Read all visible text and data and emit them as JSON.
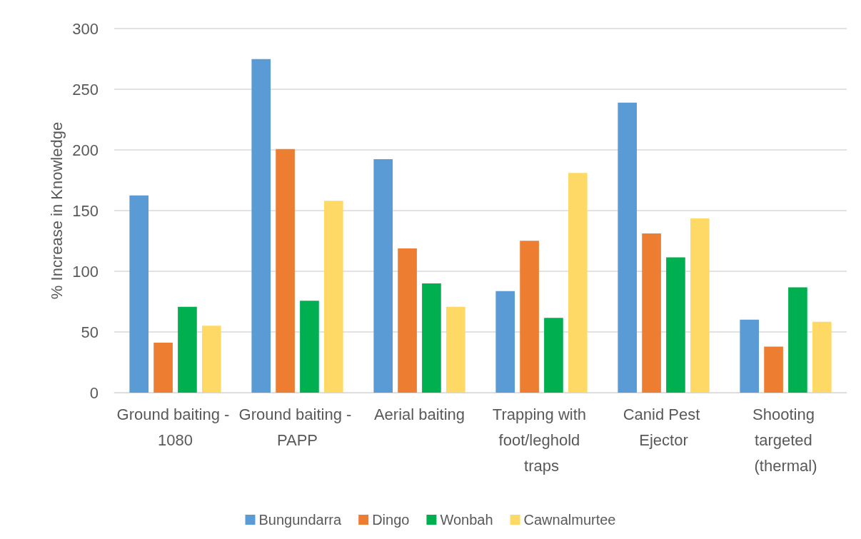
{
  "chart_data": {
    "type": "bar",
    "ylabel": "% Increase in Knowledge",
    "categories": [
      "Ground baiting - 1080",
      "Ground baiting - PAPP",
      "Aerial baiting",
      "Trapping with foot/leghold traps",
      "Canid Pest Ejector",
      "Shooting targeted (thermal)"
    ],
    "series": [
      {
        "name": "Bungundarra",
        "color": "#5b9bd5",
        "values": [
          162.5,
          274.8,
          192.3,
          83.7,
          239,
          60.1
        ]
      },
      {
        "name": "Dingo",
        "color": "#ed7d31",
        "values": [
          41.2,
          200.8,
          118.8,
          125.1,
          131.2,
          38
        ]
      },
      {
        "name": "Wonbah",
        "color": "#00b050",
        "values": [
          70.8,
          75.7,
          90,
          61.6,
          111.4,
          86.8
        ]
      },
      {
        "name": "Cawnalmurtee",
        "color": "#ffd966",
        "values": [
          55.1,
          158.1,
          70.8,
          181,
          143.6,
          58.4
        ]
      }
    ],
    "ylim": [
      0,
      300
    ],
    "yticks": [
      0,
      50,
      100,
      150,
      200,
      250,
      300
    ],
    "grid": "y",
    "legend": "bottom"
  }
}
